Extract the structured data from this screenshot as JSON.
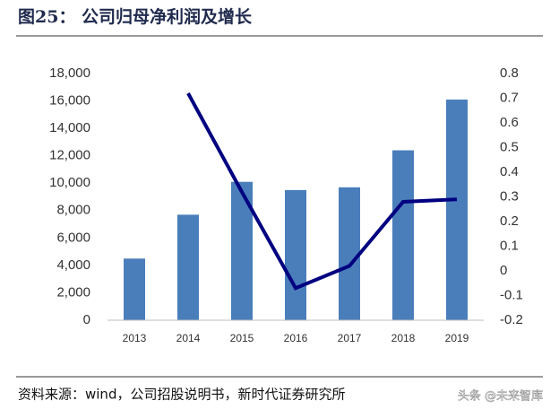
{
  "title": "图25：  公司归母净利润及增长",
  "source": "资料来源：wind，公司招股说明书，新时代证券研究所",
  "watermark": "头条 @未来智库",
  "chart_data": {
    "type": "bar",
    "categories": [
      "2013",
      "2014",
      "2015",
      "2016",
      "2017",
      "2018",
      "2019"
    ],
    "series": [
      {
        "type": "bar",
        "color": "#4a7ebb",
        "values": [
          4500,
          7700,
          10100,
          9500,
          9700,
          12400,
          16100
        ]
      },
      {
        "type": "line",
        "axis": "y2",
        "color": "#000080",
        "values": [
          null,
          0.72,
          0.32,
          -0.07,
          0.02,
          0.28,
          0.29
        ]
      }
    ],
    "ylim": [
      0,
      18000
    ],
    "yticks": [
      0,
      {
        "value": 2000,
        "label": "2,000"
      },
      {
        "value": 4000,
        "label": "4,000"
      },
      {
        "value": 6000,
        "label": "6,000"
      },
      {
        "value": 8000,
        "label": "8,000"
      },
      {
        "value": 10000,
        "label": "10,000"
      },
      {
        "value": 12000,
        "label": "12,000"
      },
      {
        "value": 14000,
        "label": "14,000"
      },
      {
        "value": 16000,
        "label": "16,000"
      },
      {
        "value": 18000,
        "label": "18,000"
      }
    ],
    "y2lim": [
      -0.2,
      0.8
    ],
    "y2ticks": [
      -0.2,
      -0.1,
      0,
      0.1,
      0.2,
      0.3,
      0.4,
      0.5,
      0.6,
      0.7,
      0.8
    ],
    "grid": false
  }
}
